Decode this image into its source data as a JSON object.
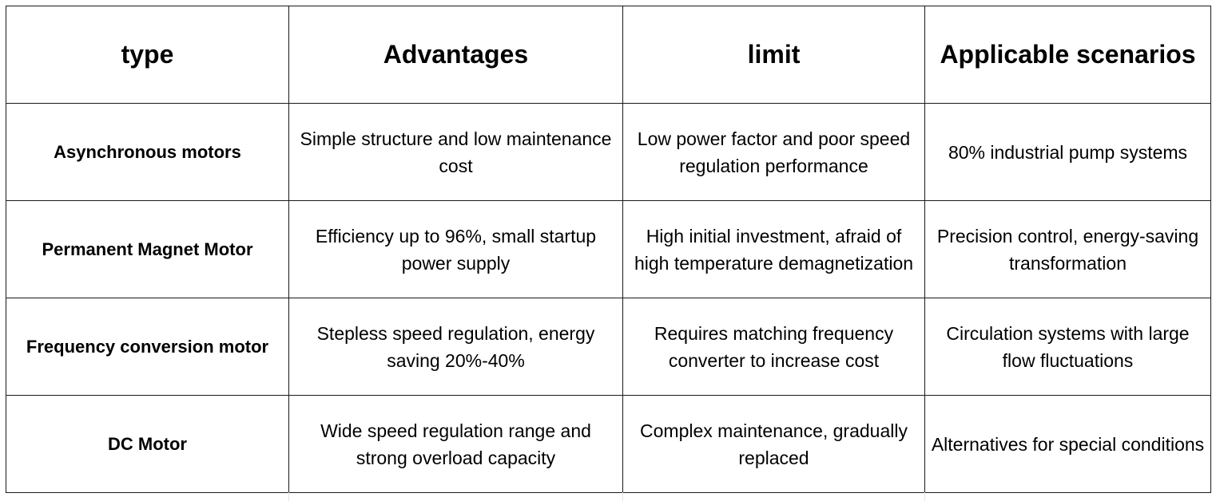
{
  "table": {
    "headers": [
      "type",
      "Advantages",
      "limit",
      "Applicable scenarios"
    ],
    "rows": [
      {
        "type": "Asynchronous motors",
        "advantages": "Simple structure and low maintenance cost",
        "limit": "Low power factor and poor speed regulation performance",
        "scenarios": "80% industrial pump systems"
      },
      {
        "type": "Permanent Magnet Motor",
        "advantages": "Efficiency up to 96%, small startup power supply",
        "limit": "High initial investment, afraid of high temperature demagnetization",
        "scenarios": "Precision control, energy-saving transformation"
      },
      {
        "type": "Frequency conversion motor",
        "advantages": "Stepless speed regulation, energy saving 20%-40%",
        "limit": "Requires matching frequency converter to increase cost",
        "scenarios": "Circulation systems with large flow fluctuations"
      },
      {
        "type": "DC Motor",
        "advantages": "Wide speed regulation range and strong overload capacity",
        "limit": "Complex maintenance, gradually replaced",
        "scenarios": "Alternatives for special conditions"
      }
    ]
  },
  "colors": {
    "border": "#1a1a1a",
    "text": "#000000",
    "background": "#ffffff"
  }
}
